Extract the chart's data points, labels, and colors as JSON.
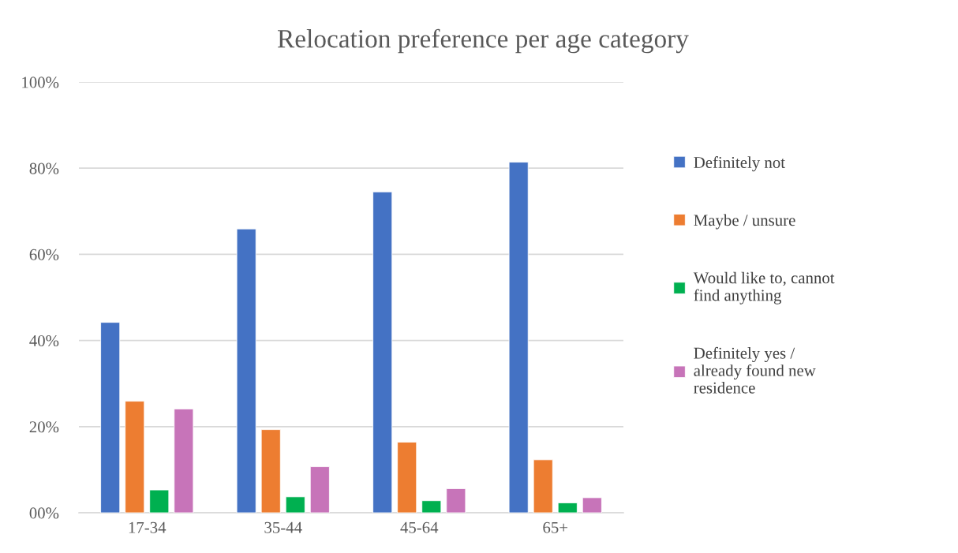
{
  "chart_data": {
    "type": "bar",
    "title": "Relocation preference per age category",
    "categories": [
      "17-34",
      "35-44",
      "45-64",
      "65+"
    ],
    "series": [
      {
        "name": "Definitely not",
        "color": "#4472c4",
        "values": [
          44.2,
          65.9,
          74.5,
          81.4
        ]
      },
      {
        "name": "Maybe / unsure",
        "color": "#ed7d31",
        "values": [
          25.9,
          19.3,
          16.4,
          12.3
        ]
      },
      {
        "name": "Would like to, cannot find anything",
        "color": "#00b050",
        "values": [
          5.3,
          3.7,
          2.8,
          2.3
        ]
      },
      {
        "name": "Definitely yes / already found new residence",
        "color": "#c774b9",
        "values": [
          24.1,
          10.7,
          5.6,
          3.5
        ]
      }
    ],
    "ylim": [
      0,
      100
    ],
    "yticks": [
      {
        "value": 0,
        "label": "00%"
      },
      {
        "value": 20,
        "label": "20%"
      },
      {
        "value": 40,
        "label": "40%"
      },
      {
        "value": 60,
        "label": "60%"
      },
      {
        "value": 80,
        "label": "80%"
      },
      {
        "value": 100,
        "label": "100%"
      }
    ],
    "grid": "y",
    "legend": "right"
  }
}
